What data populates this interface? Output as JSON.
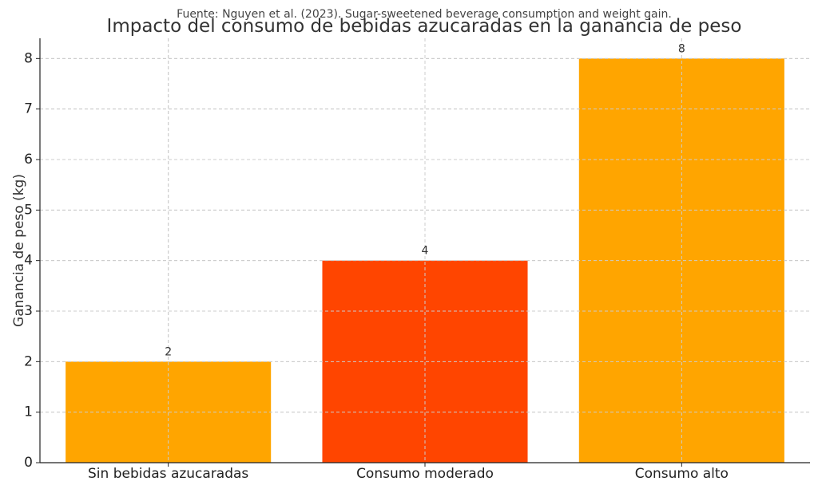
{
  "chart_data": {
    "type": "bar",
    "title": "Impacto del consumo de bebidas azucaradas en la ganancia de peso",
    "source": "Fuente: Nguyen et al. (2023). Sugar-sweetened beverage consumption and weight gain.",
    "xlabel": "",
    "ylabel": "Ganancia de peso (kg)",
    "categories": [
      "Sin bebidas azucaradas",
      "Consumo moderado",
      "Consumo alto"
    ],
    "values": [
      2,
      4,
      8
    ],
    "value_labels": [
      "2",
      "4",
      "8"
    ],
    "colors": [
      "#FFA500",
      "#FF4500",
      "#FFA500"
    ],
    "ylim": [
      0,
      8.4
    ],
    "yticks": [
      0,
      1,
      2,
      3,
      4,
      5,
      6,
      7,
      8
    ],
    "ytick_labels": [
      "0",
      "1",
      "2",
      "3",
      "4",
      "5",
      "6",
      "7",
      "8"
    ],
    "grid": true,
    "legend": "none"
  }
}
